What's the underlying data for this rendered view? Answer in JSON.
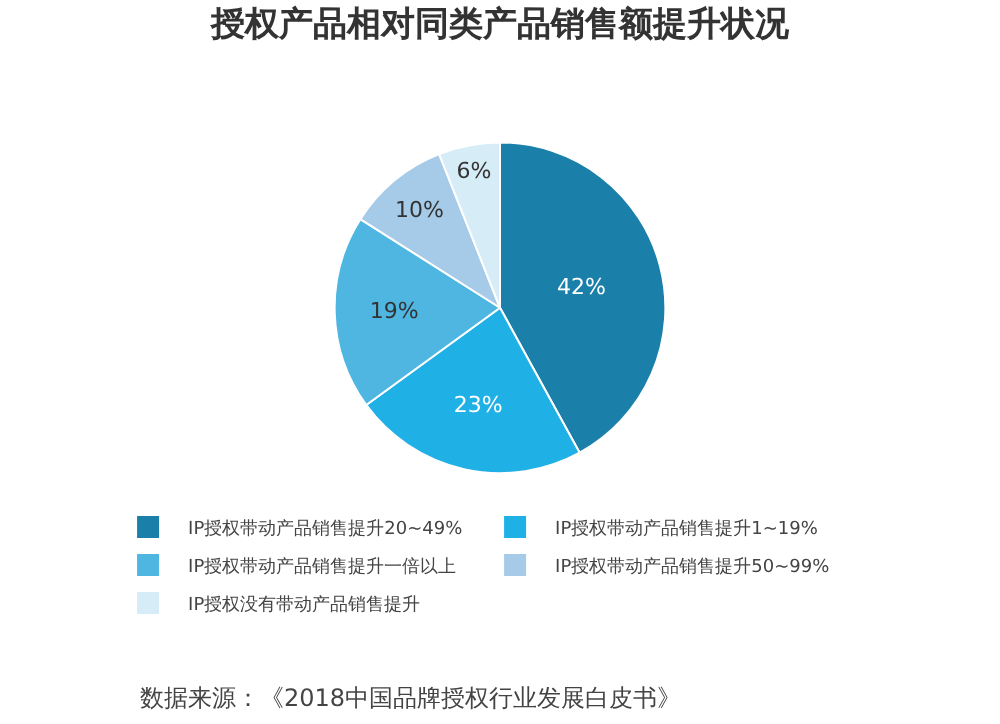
{
  "chart_data": {
    "type": "pie",
    "title": "授权产品相对同类产品销售额提升状况",
    "categories": [
      "IP授权带动产品销售提升20~49%",
      "IP授权带动产品销售提升1~19%",
      "IP授权带动产品销售提升一倍以上",
      "IP授权带动产品销售提升50~99%",
      "IP授权没有带动产品销售提升"
    ],
    "values": [
      42,
      23,
      19,
      10,
      6
    ],
    "value_labels": [
      "42%",
      "23%",
      "19%",
      "10%",
      "6%"
    ],
    "colors": [
      "#1a7fa9",
      "#1fb0e6",
      "#4fb6e2",
      "#a6cbe8",
      "#d6ecf7"
    ],
    "legend": "bottom",
    "annotations": [
      "数据来源：《2018中国品牌授权行业发展白皮书》"
    ]
  }
}
